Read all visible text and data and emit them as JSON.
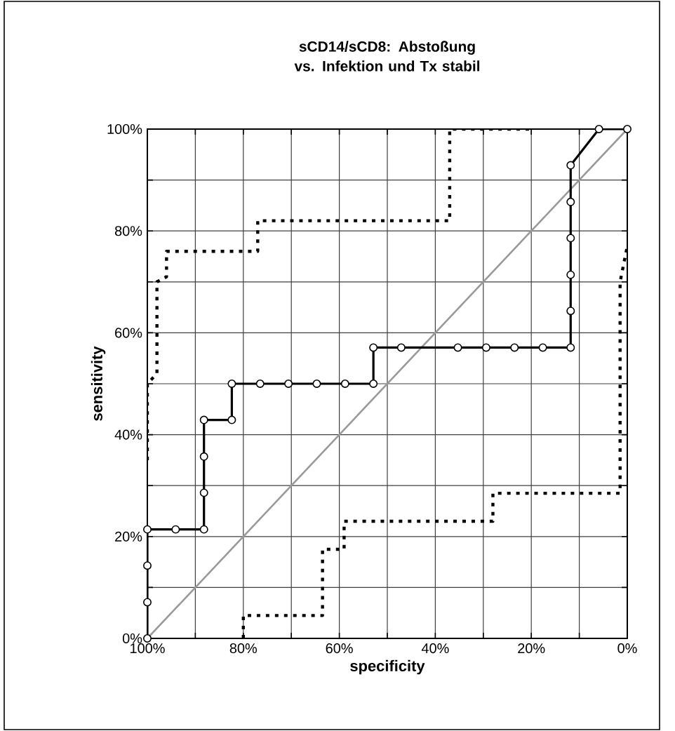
{
  "chart_data": {
    "type": "line",
    "title": "sCD14/sCD8: Abstoßung vs. Infektion und Tx stabil",
    "xlabel": "specificity",
    "ylabel": "sensitivity",
    "xlim": [
      100,
      0
    ],
    "ylim": [
      0,
      100
    ],
    "xticks": [
      {
        "value": 100,
        "label": "100%"
      },
      {
        "value": 90,
        "label": null
      },
      {
        "value": 80,
        "label": "80%"
      },
      {
        "value": 70,
        "label": null
      },
      {
        "value": 60,
        "label": "60%"
      },
      {
        "value": 50,
        "label": null
      },
      {
        "value": 40,
        "label": "40%"
      },
      {
        "value": 30,
        "label": null
      },
      {
        "value": 20,
        "label": "20%"
      },
      {
        "value": 10,
        "label": null
      },
      {
        "value": 0,
        "label": "0%"
      }
    ],
    "yticks": [
      {
        "value": 0,
        "label": "0%"
      },
      {
        "value": 10,
        "label": null
      },
      {
        "value": 20,
        "label": "20%"
      },
      {
        "value": 30,
        "label": null
      },
      {
        "value": 40,
        "label": "40%"
      },
      {
        "value": 50,
        "label": null
      },
      {
        "value": 60,
        "label": "60%"
      },
      {
        "value": 70,
        "label": null
      },
      {
        "value": 80,
        "label": "80%"
      },
      {
        "value": 90,
        "label": null
      },
      {
        "value": 100,
        "label": "100%"
      }
    ],
    "grid": true,
    "series": [
      {
        "color": "#999999",
        "marker": "none",
        "line_style": "solid",
        "x": [
          100,
          0
        ],
        "values": [
          0,
          100
        ]
      },
      {
        "color": "#000000",
        "marker": "none",
        "line_style": "dotted",
        "x": [
          100,
          100,
          98,
          98,
          96,
          96,
          77,
          77,
          37,
          37,
          20
        ],
        "values": [
          35,
          50,
          52,
          70,
          71,
          76,
          76,
          82,
          82,
          100,
          100
        ]
      },
      {
        "color": "#000000",
        "marker": "none",
        "line_style": "dotted",
        "x": [
          80,
          80,
          63.5,
          63.5,
          59,
          59,
          28,
          28,
          1.5,
          1.5,
          0
        ],
        "values": [
          0,
          4.5,
          4.5,
          17.5,
          17.5,
          23,
          23,
          28.5,
          28.5,
          70,
          77
        ]
      },
      {
        "color": "#000000",
        "marker": "circle",
        "line_style": "solid",
        "x": [
          100,
          100,
          100,
          100,
          94.1,
          88.2,
          88.2,
          88.2,
          88.2,
          82.4,
          82.4,
          76.5,
          70.6,
          64.7,
          58.8,
          52.9,
          52.9,
          47.1,
          35.3,
          29.4,
          23.5,
          17.6,
          11.8,
          11.8,
          11.8,
          11.8,
          11.8,
          11.8,
          5.9,
          0
        ],
        "values": [
          0,
          7.1,
          14.3,
          21.4,
          21.4,
          21.4,
          28.6,
          35.7,
          42.9,
          42.9,
          50,
          50,
          50,
          50,
          50,
          50,
          57.1,
          57.1,
          57.1,
          57.1,
          57.1,
          57.1,
          57.1,
          64.3,
          71.4,
          78.6,
          85.7,
          92.9,
          100,
          100
        ]
      }
    ]
  }
}
